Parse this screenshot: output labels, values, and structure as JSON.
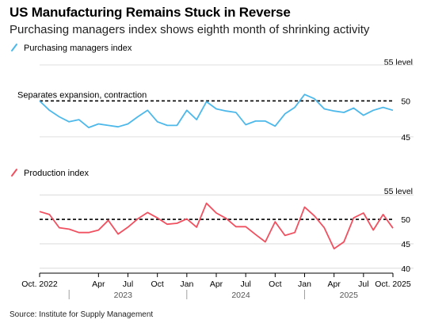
{
  "header": {
    "title": "US Manufacturing Remains Stuck in Reverse",
    "subtitle": "Purchasing managers index shows eighth month of shrinking activity"
  },
  "source": "Source: Institute for Supply Management",
  "colors": {
    "pmi": "#4db8ea",
    "production": "#f0505f",
    "reference_line": "#000000"
  },
  "x_axis": {
    "tick_labels": [
      "Oct. 2022",
      "Apr",
      "Jul",
      "Oct",
      "Jan",
      "Apr",
      "Jul",
      "Oct",
      "Jan",
      "Apr",
      "Jul",
      "Oct. 2025"
    ],
    "tick_dates": [
      "2022-10",
      "2023-04",
      "2023-07",
      "2023-10",
      "2024-01",
      "2024-04",
      "2024-07",
      "2024-10",
      "2025-01",
      "2025-04",
      "2025-07",
      "2025-10"
    ],
    "years": [
      "2023",
      "2024",
      "2025"
    ]
  },
  "chart_data": [
    {
      "type": "line",
      "legend": "Purchasing managers index",
      "unit_label": "55 level",
      "reference_label": "Separates expansion, contraction",
      "reference_value": 50,
      "y_ticks": [
        45,
        50
      ],
      "ylim": [
        44,
        55
      ],
      "x": [
        "2022-10",
        "2022-11",
        "2022-12",
        "2023-01",
        "2023-02",
        "2023-03",
        "2023-04",
        "2023-05",
        "2023-06",
        "2023-07",
        "2023-08",
        "2023-09",
        "2023-10",
        "2023-11",
        "2023-12",
        "2024-01",
        "2024-02",
        "2024-03",
        "2024-04",
        "2024-05",
        "2024-06",
        "2024-07",
        "2024-08",
        "2024-09",
        "2024-10",
        "2024-11",
        "2024-12",
        "2025-01",
        "2025-02",
        "2025-03",
        "2025-04",
        "2025-05",
        "2025-06",
        "2025-07",
        "2025-08",
        "2025-09",
        "2025-10"
      ],
      "values": [
        50.0,
        48.7,
        47.8,
        47.1,
        47.4,
        46.3,
        46.8,
        46.6,
        46.4,
        46.8,
        47.8,
        48.7,
        47.1,
        46.6,
        46.6,
        48.7,
        47.4,
        49.9,
        48.9,
        48.6,
        48.4,
        46.7,
        47.2,
        47.2,
        46.5,
        48.2,
        49.1,
        50.9,
        50.3,
        48.9,
        48.6,
        48.4,
        49.0,
        48.0,
        48.7,
        49.1,
        48.7
      ]
    },
    {
      "type": "line",
      "legend": "Production index",
      "unit_label": "55 level",
      "reference_value": 50,
      "y_ticks": [
        40,
        45,
        50
      ],
      "ylim": [
        39,
        56
      ],
      "x": [
        "2022-10",
        "2022-11",
        "2022-12",
        "2023-01",
        "2023-02",
        "2023-03",
        "2023-04",
        "2023-05",
        "2023-06",
        "2023-07",
        "2023-08",
        "2023-09",
        "2023-10",
        "2023-11",
        "2023-12",
        "2024-01",
        "2024-02",
        "2024-03",
        "2024-04",
        "2024-05",
        "2024-06",
        "2024-07",
        "2024-08",
        "2024-09",
        "2024-10",
        "2024-11",
        "2024-12",
        "2025-01",
        "2025-02",
        "2025-03",
        "2025-04",
        "2025-05",
        "2025-06",
        "2025-07",
        "2025-08",
        "2025-09",
        "2025-10"
      ],
      "values": [
        51.6,
        51.0,
        48.3,
        48.0,
        47.3,
        47.3,
        47.8,
        49.8,
        47.0,
        48.4,
        50.1,
        51.4,
        50.3,
        49.0,
        49.2,
        50.1,
        48.4,
        53.3,
        51.3,
        50.2,
        48.5,
        48.5,
        46.9,
        45.4,
        49.5,
        46.7,
        47.3,
        52.5,
        50.7,
        48.3,
        44.0,
        45.4,
        50.3,
        51.3,
        47.8,
        51.0,
        48.2
      ]
    }
  ]
}
